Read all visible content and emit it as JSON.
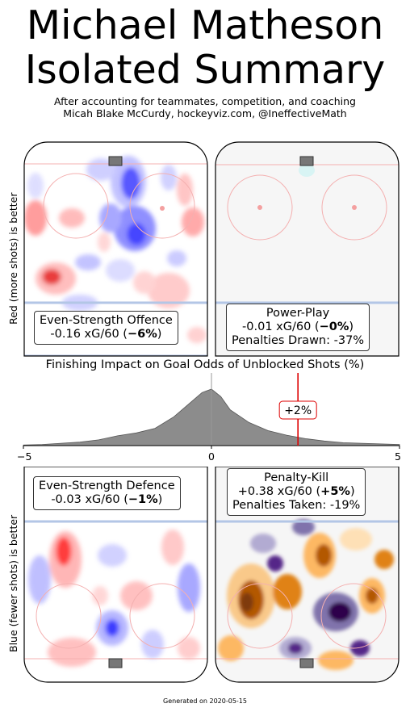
{
  "title_line1": "Michael Matheson",
  "title_line2": "Isolated Summary",
  "subtitle_line1": "After accounting for teammates, competition, and coaching",
  "subtitle_line2": "Micah Blake McCurdy, hockeyviz.com, @IneffectiveMath",
  "ylabel_top": "Red (more shots) is better",
  "ylabel_bottom": "Blue (fewer shots) is better",
  "panels": {
    "es_offence": {
      "title": "Even-Strength Offence",
      "value": "-0.16 xG/60 (",
      "pct": "−6%",
      "close": ")"
    },
    "power_play": {
      "title": "Power-Play",
      "value": "-0.01 xG/60 (",
      "pct": "−0%",
      "close": ")",
      "extra": "Penalties Drawn: -37%"
    },
    "es_defence": {
      "title": "Even-Strength Defence",
      "value": "-0.03 xG/60 (",
      "pct": "−1%",
      "close": ")"
    },
    "penalty_kill": {
      "title": "Penalty-Kill",
      "value": "+0.38 xG/60 (",
      "pct": "+5%",
      "close": ")",
      "extra": "Penalties Taken: -19%"
    }
  },
  "chart_data": {
    "type": "area",
    "title": "Finishing Impact on Goal Odds of Unblocked Shots (%)",
    "xlim": [
      -5,
      5
    ],
    "x_ticks": [
      "−5",
      "0",
      "5"
    ],
    "distribution": {
      "x": [
        -5,
        -4.5,
        -4,
        -3.5,
        -3,
        -2.5,
        -2,
        -1.5,
        -1,
        -0.5,
        -0.25,
        0,
        0.25,
        0.5,
        1,
        1.5,
        2,
        2.5,
        3,
        3.5,
        4,
        4.5,
        5
      ],
      "y": [
        0.01,
        0.02,
        0.04,
        0.06,
        0.1,
        0.17,
        0.22,
        0.3,
        0.5,
        0.78,
        0.92,
        0.98,
        0.85,
        0.62,
        0.4,
        0.26,
        0.18,
        0.12,
        0.08,
        0.05,
        0.04,
        0.03,
        0.02
      ]
    },
    "marker": {
      "value": 2.3,
      "label": "+2%",
      "color": "#dd0000"
    },
    "zero_line": 0
  },
  "footer": "Generated on 2020-05-15",
  "colors": {
    "more": "#ff0000",
    "fewer": "#0000ff",
    "pp_bg": "#f6f6f6",
    "pk_warm": "#b35806",
    "pk_cool": "#2d004b"
  }
}
